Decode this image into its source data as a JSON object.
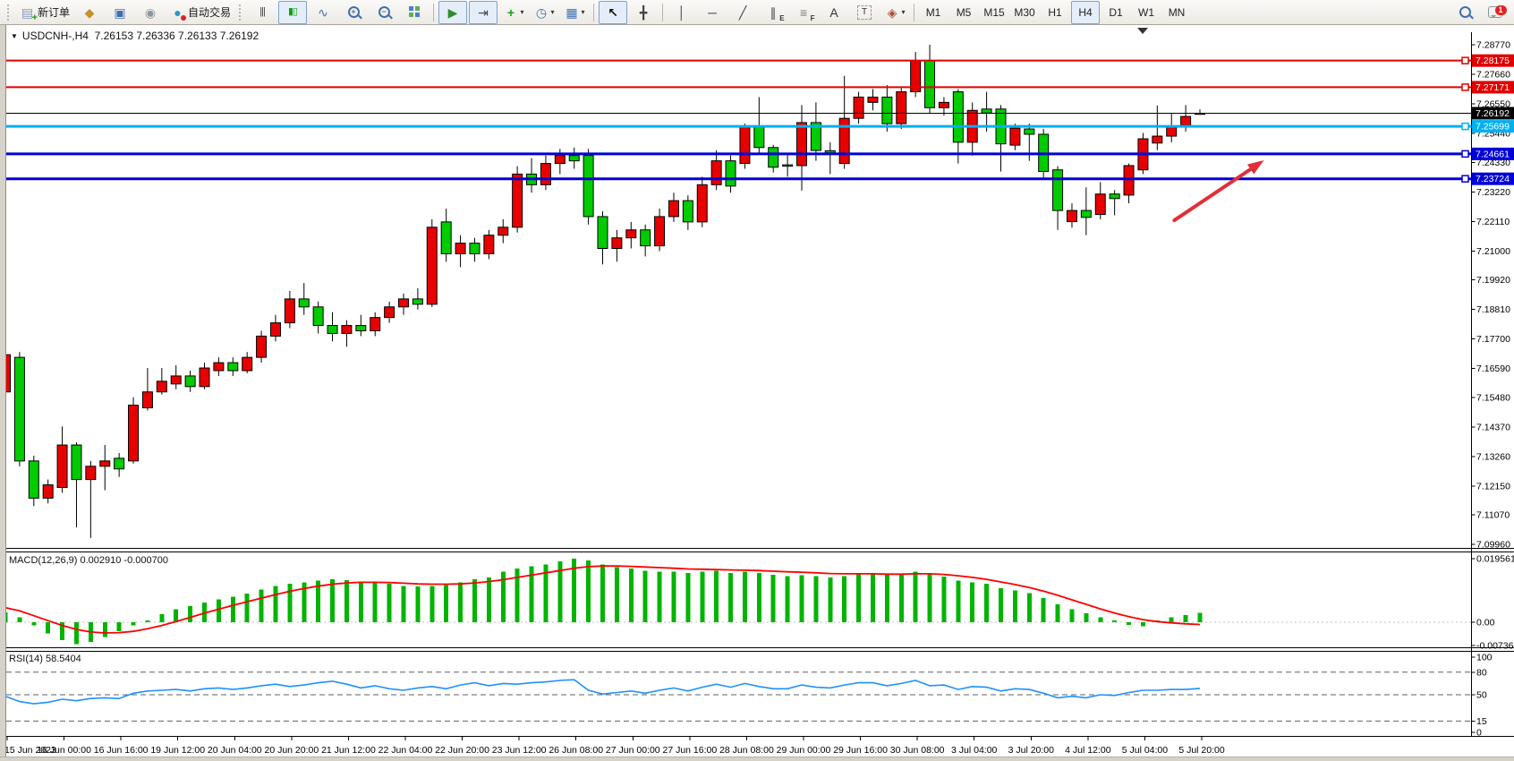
{
  "window": {
    "title_symbol": "USDCNH-,H4",
    "title_ohlc": "7.26153 7.26336 7.26133 7.26192",
    "dropdown_marker": "▼"
  },
  "toolbar": {
    "groups": [
      {
        "gripper": true,
        "items": [
          {
            "name": "new-order-button",
            "icon": "new-order-icon",
            "label": "新订单"
          },
          {
            "name": "history-center-button",
            "icon": "history-icon"
          },
          {
            "name": "terminal-button",
            "icon": "terminal-icon"
          },
          {
            "name": "signals-button",
            "icon": "signals-icon"
          },
          {
            "name": "auto-trading-button",
            "icon": "auto-trading-icon",
            "label": "自动交易"
          }
        ]
      },
      {
        "gripper": true,
        "items": [
          {
            "name": "bar-chart-button",
            "icon": "bar-chart-icon"
          },
          {
            "name": "candlestick-button",
            "icon": "candlestick-icon",
            "active": true
          },
          {
            "name": "line-chart-button",
            "icon": "line-chart-icon"
          },
          {
            "name": "zoom-in-button",
            "icon": "zoom-in-icon"
          },
          {
            "name": "zoom-out-button",
            "icon": "zoom-out-icon"
          },
          {
            "name": "tile-windows-button",
            "icon": "tile-windows-icon"
          }
        ]
      },
      {
        "sep": true,
        "items": [
          {
            "name": "auto-scroll-button",
            "icon": "auto-scroll-icon",
            "active": true
          },
          {
            "name": "chart-shift-button",
            "icon": "chart-shift-icon",
            "active": true
          },
          {
            "name": "indicators-button",
            "icon": "indicators-icon",
            "caret": true
          },
          {
            "name": "periods-button",
            "icon": "clock-icon",
            "caret": true
          },
          {
            "name": "templates-button",
            "icon": "template-icon",
            "caret": true
          }
        ]
      },
      {
        "sep": true,
        "items": [
          {
            "name": "cursor-button",
            "icon": "cursor-icon",
            "active": true
          },
          {
            "name": "crosshair-button",
            "icon": "crosshair-icon"
          }
        ]
      },
      {
        "sep": true,
        "items": [
          {
            "name": "vertical-line-button",
            "icon": "vertical-line-icon"
          },
          {
            "name": "horizontal-line-button",
            "icon": "horizontal-line-icon"
          },
          {
            "name": "trendline-button",
            "icon": "trendline-icon"
          },
          {
            "name": "equidistant-channel-button",
            "icon": "channel-icon"
          },
          {
            "name": "fibonacci-button",
            "icon": "fibonacci-icon"
          },
          {
            "name": "text-button",
            "icon": "text-icon"
          },
          {
            "name": "text-label-button",
            "icon": "text-label-icon"
          },
          {
            "name": "arrows-button",
            "icon": "arrows-icon",
            "caret": true
          }
        ]
      },
      {
        "sep": true,
        "items": [
          {
            "name": "timeframe-m1",
            "label": "M1"
          },
          {
            "name": "timeframe-m5",
            "label": "M5"
          },
          {
            "name": "timeframe-m15",
            "label": "M15"
          },
          {
            "name": "timeframe-m30",
            "label": "M30"
          },
          {
            "name": "timeframe-h1",
            "label": "H1"
          },
          {
            "name": "timeframe-h4",
            "label": "H4",
            "active": true
          },
          {
            "name": "timeframe-d1",
            "label": "D1"
          },
          {
            "name": "timeframe-w1",
            "label": "W1"
          },
          {
            "name": "timeframe-mn",
            "label": "MN"
          }
        ]
      },
      {
        "spacer": true
      },
      {
        "items": [
          {
            "name": "search-button",
            "icon": "search-icon"
          },
          {
            "name": "chat-button",
            "icon": "chat-icon",
            "badge": "1"
          }
        ]
      }
    ]
  },
  "chart_data": [
    {
      "type": "candlestick",
      "title": "USDCNH-,H4",
      "timeframe": "H4",
      "ohlc_display": {
        "open": "7.26153",
        "high": "7.26336",
        "low": "7.26133",
        "close": "7.26192"
      },
      "ylim": [
        7.0975,
        7.292
      ],
      "up_color": "#e80000",
      "down_color": "#00cc00",
      "outline_color": "#000000",
      "y_ticks": [
        "7.28770",
        "7.27660",
        "7.26550",
        "7.25440",
        "7.24330",
        "7.23220",
        "7.22110",
        "7.21000",
        "7.19920",
        "7.18810",
        "7.17700",
        "7.16590",
        "7.15480",
        "7.14370",
        "7.13260",
        "7.12150",
        "7.11070",
        "7.09960"
      ],
      "candles": [
        [
          7.157,
          7.174,
          7.155,
          7.171
        ],
        [
          7.17,
          7.172,
          7.129,
          7.131
        ],
        [
          7.131,
          7.133,
          7.114,
          7.117
        ],
        [
          7.117,
          7.124,
          7.115,
          7.122
        ],
        [
          7.121,
          7.144,
          7.119,
          7.137
        ],
        [
          7.137,
          7.138,
          7.106,
          7.124
        ],
        [
          7.124,
          7.131,
          7.102,
          7.129
        ],
        [
          7.129,
          7.137,
          7.12,
          7.131
        ],
        [
          7.132,
          7.134,
          7.125,
          7.128
        ],
        [
          7.131,
          7.155,
          7.13,
          7.152
        ],
        [
          7.151,
          7.166,
          7.15,
          7.157
        ],
        [
          7.157,
          7.166,
          7.156,
          7.161
        ],
        [
          7.16,
          7.167,
          7.158,
          7.163
        ],
        [
          7.163,
          7.165,
          7.157,
          7.159
        ],
        [
          7.159,
          7.168,
          7.158,
          7.166
        ],
        [
          7.165,
          7.17,
          7.163,
          7.168
        ],
        [
          7.168,
          7.17,
          7.163,
          7.165
        ],
        [
          7.165,
          7.172,
          7.164,
          7.17
        ],
        [
          7.17,
          7.18,
          7.168,
          7.178
        ],
        [
          7.178,
          7.186,
          7.176,
          7.183
        ],
        [
          7.183,
          7.195,
          7.181,
          7.192
        ],
        [
          7.192,
          7.198,
          7.186,
          7.189
        ],
        [
          7.189,
          7.191,
          7.179,
          7.182
        ],
        [
          7.182,
          7.187,
          7.176,
          7.179
        ],
        [
          7.179,
          7.184,
          7.174,
          7.182
        ],
        [
          7.182,
          7.186,
          7.178,
          7.18
        ],
        [
          7.18,
          7.187,
          7.178,
          7.185
        ],
        [
          7.185,
          7.191,
          7.183,
          7.189
        ],
        [
          7.189,
          7.194,
          7.186,
          7.192
        ],
        [
          7.192,
          7.196,
          7.188,
          7.19
        ],
        [
          7.19,
          7.222,
          7.189,
          7.219
        ],
        [
          7.221,
          7.226,
          7.206,
          7.209
        ],
        [
          7.209,
          7.216,
          7.204,
          7.213
        ],
        [
          7.213,
          7.215,
          7.206,
          7.209
        ],
        [
          7.209,
          7.218,
          7.207,
          7.216
        ],
        [
          7.216,
          7.222,
          7.213,
          7.219
        ],
        [
          7.219,
          7.242,
          7.217,
          7.239
        ],
        [
          7.239,
          7.245,
          7.232,
          7.235
        ],
        [
          7.235,
          7.246,
          7.233,
          7.243
        ],
        [
          7.243,
          7.2485,
          7.239,
          7.246
        ],
        [
          7.246,
          7.249,
          7.241,
          7.244
        ],
        [
          7.246,
          7.2485,
          7.22,
          7.223
        ],
        [
          7.223,
          7.225,
          7.205,
          7.211
        ],
        [
          7.211,
          7.218,
          7.206,
          7.215
        ],
        [
          7.215,
          7.221,
          7.211,
          7.218
        ],
        [
          7.218,
          7.22,
          7.208,
          7.212
        ],
        [
          7.212,
          7.226,
          7.21,
          7.223
        ],
        [
          7.223,
          7.232,
          7.221,
          7.229
        ],
        [
          7.229,
          7.231,
          7.218,
          7.221
        ],
        [
          7.221,
          7.238,
          7.219,
          7.235
        ],
        [
          7.235,
          7.248,
          7.233,
          7.244
        ],
        [
          7.244,
          7.246,
          7.232,
          7.2345
        ],
        [
          7.243,
          7.258,
          7.241,
          7.2567
        ],
        [
          7.2567,
          7.268,
          7.247,
          7.249
        ],
        [
          7.249,
          7.25,
          7.2396,
          7.2416
        ],
        [
          7.2425,
          7.247,
          7.238,
          7.242
        ],
        [
          7.2422,
          7.265,
          7.2328,
          7.2584
        ],
        [
          7.2584,
          7.266,
          7.244,
          7.2479
        ],
        [
          7.2478,
          7.251,
          7.239,
          7.247
        ],
        [
          7.243,
          7.276,
          7.241,
          7.26
        ],
        [
          7.26,
          7.27,
          7.258,
          7.268
        ],
        [
          7.266,
          7.271,
          7.263,
          7.268
        ],
        [
          7.268,
          7.2725,
          7.255,
          7.258
        ],
        [
          7.258,
          7.272,
          7.256,
          7.27
        ],
        [
          7.27,
          7.285,
          7.268,
          7.2817
        ],
        [
          7.2817,
          7.2877,
          7.262,
          7.264
        ],
        [
          7.264,
          7.268,
          7.261,
          7.266
        ],
        [
          7.27,
          7.271,
          7.243,
          7.251
        ],
        [
          7.251,
          7.266,
          7.246,
          7.263
        ],
        [
          7.2635,
          7.27,
          7.255,
          7.262
        ],
        [
          7.2635,
          7.265,
          7.24,
          7.2504
        ],
        [
          7.2499,
          7.258,
          7.248,
          7.2563
        ],
        [
          7.256,
          7.258,
          7.244,
          7.254
        ],
        [
          7.254,
          7.256,
          7.237,
          7.24
        ],
        [
          7.2406,
          7.242,
          7.218,
          7.2253
        ],
        [
          7.2211,
          7.228,
          7.2188,
          7.2253
        ],
        [
          7.2253,
          7.234,
          7.216,
          7.2227
        ],
        [
          7.2238,
          7.236,
          7.222,
          7.2315
        ],
        [
          7.2315,
          7.233,
          7.2235,
          7.2298
        ],
        [
          7.2311,
          7.243,
          7.228,
          7.2422
        ],
        [
          7.2406,
          7.2545,
          7.239,
          7.2523
        ],
        [
          7.2507,
          7.2648,
          7.248,
          7.2533
        ],
        [
          7.2533,
          7.262,
          7.251,
          7.2567
        ],
        [
          7.2574,
          7.265,
          7.255,
          7.2607
        ],
        [
          7.26153,
          7.26336,
          7.26133,
          7.26192
        ]
      ],
      "hlines": [
        {
          "price": 7.28175,
          "color": "#e00000",
          "width": 2,
          "label": "7.28175"
        },
        {
          "price": 7.27171,
          "color": "#e00000",
          "width": 2,
          "label": "7.27171"
        },
        {
          "price": 7.25699,
          "color": "#00b0f0",
          "width": 3,
          "label": "7.25699"
        },
        {
          "price": 7.24661,
          "color": "#0000d8",
          "width": 3,
          "label": "7.24661"
        },
        {
          "price": 7.23724,
          "color": "#0000d8",
          "width": 3,
          "label": "7.23724"
        }
      ],
      "current_price": {
        "price": 7.26192,
        "label": "7.26192",
        "line_color": "#000000",
        "badge_bg": "#000000"
      },
      "badges": [
        {
          "text": "7.28175",
          "price": 7.28175,
          "bg": "#e00000"
        },
        {
          "text": "7.27171",
          "price": 7.27171,
          "bg": "#e00000"
        },
        {
          "text": "7.26192",
          "price": 7.26192,
          "bg": "#000000"
        },
        {
          "text": "7.25699",
          "price": 7.25699,
          "bg": "#00b0f0"
        },
        {
          "text": "7.24661",
          "price": 7.24661,
          "bg": "#0000d8"
        },
        {
          "text": "7.23724",
          "price": 7.23724,
          "bg": "#0000d8"
        }
      ],
      "arrow": {
        "from": {
          "bar": 82.2,
          "price": 7.2216
        },
        "to": {
          "bar": 88.5,
          "price": 7.2442
        },
        "color": "#e22e38"
      }
    },
    {
      "type": "bar",
      "name": "MACD",
      "label": "MACD(12,26,9) 0.002910 -0.000700",
      "bar_color": "#00b400",
      "signal_color": "#ff0000",
      "ticks": [
        {
          "label": "0.019561",
          "v": 0.019561
        },
        {
          "label": "0.00",
          "v": 0
        },
        {
          "label": "-0.007367",
          "v": -0.007367
        }
      ],
      "values": [
        0.003,
        0.0015,
        -0.001,
        -0.0035,
        -0.0055,
        -0.0068,
        -0.006,
        -0.0045,
        -0.0028,
        -0.001,
        0.0005,
        0.0025,
        0.004,
        0.005,
        0.006,
        0.007,
        0.0078,
        0.0088,
        0.01,
        0.0112,
        0.0118,
        0.0123,
        0.0128,
        0.0132,
        0.013,
        0.0125,
        0.0122,
        0.0118,
        0.0112,
        0.011,
        0.0112,
        0.0115,
        0.0122,
        0.0132,
        0.0138,
        0.0155,
        0.0165,
        0.0172,
        0.0178,
        0.0188,
        0.0196,
        0.019,
        0.0178,
        0.017,
        0.0165,
        0.0158,
        0.0155,
        0.0156,
        0.0152,
        0.0155,
        0.0158,
        0.0152,
        0.0156,
        0.0152,
        0.0146,
        0.0142,
        0.0145,
        0.0142,
        0.0138,
        0.0142,
        0.0148,
        0.015,
        0.0146,
        0.0148,
        0.0156,
        0.015,
        0.014,
        0.0128,
        0.0122,
        0.0118,
        0.0105,
        0.0098,
        0.009,
        0.0075,
        0.0055,
        0.004,
        0.0028,
        0.0015,
        0.0005,
        -0.0008,
        -0.0012,
        0.0005,
        0.0015,
        0.0022,
        0.00291
      ],
      "signal": [
        0.0045,
        0.0035,
        0.002,
        0.0005,
        -0.001,
        -0.0022,
        -0.003,
        -0.0033,
        -0.0032,
        -0.0028,
        -0.002,
        -0.001,
        0.0002,
        0.0015,
        0.0028,
        0.004,
        0.0052,
        0.0063,
        0.0074,
        0.0085,
        0.0095,
        0.0104,
        0.0111,
        0.0117,
        0.0121,
        0.0123,
        0.0123,
        0.0122,
        0.012,
        0.0118,
        0.0117,
        0.0117,
        0.0118,
        0.0121,
        0.0125,
        0.0131,
        0.0138,
        0.0145,
        0.0152,
        0.0159,
        0.0166,
        0.0171,
        0.0173,
        0.0173,
        0.0172,
        0.017,
        0.0168,
        0.0166,
        0.0164,
        0.0163,
        0.0162,
        0.0161,
        0.016,
        0.0159,
        0.0157,
        0.0155,
        0.0154,
        0.0152,
        0.015,
        0.0149,
        0.0149,
        0.0149,
        0.0148,
        0.0148,
        0.0149,
        0.0149,
        0.0147,
        0.0143,
        0.0138,
        0.0132,
        0.0124,
        0.0116,
        0.0107,
        0.0096,
        0.0083,
        0.0069,
        0.0055,
        0.0041,
        0.0028,
        0.0017,
        0.0008,
        0.0002,
        -0.0002,
        -0.0005,
        -0.0007
      ]
    },
    {
      "type": "line",
      "name": "RSI",
      "label": "RSI(14) 58.5404",
      "color": "#1e90ff",
      "ticks": [
        100,
        80,
        50,
        15,
        0
      ],
      "dashed_levels": [
        80,
        50,
        15
      ],
      "values": [
        48,
        41,
        38,
        40,
        44,
        42,
        45,
        46,
        45,
        52,
        55,
        56,
        57,
        55,
        58,
        59,
        57,
        59,
        62,
        64,
        61,
        63,
        66,
        68,
        64,
        59,
        62,
        58,
        56,
        59,
        61,
        58,
        63,
        66,
        62,
        65,
        64,
        66,
        67,
        69,
        70,
        56,
        51,
        53,
        55,
        52,
        56,
        59,
        55,
        60,
        64,
        60,
        65,
        61,
        58,
        58,
        63,
        60,
        59,
        63,
        66,
        66,
        62,
        65,
        69,
        62,
        63,
        57,
        61,
        60,
        55,
        58,
        57,
        52,
        46,
        48,
        46,
        50,
        49,
        53,
        56,
        56,
        57,
        57,
        58.5
      ]
    }
  ],
  "x_axis": {
    "labels": [
      "15 Jun 2023",
      "16 Jun 00:00",
      "16 Jun 16:00",
      "19 Jun 12:00",
      "20 Jun 04:00",
      "20 Jun 20:00",
      "21 Jun 12:00",
      "22 Jun 04:00",
      "22 Jun 20:00",
      "23 Jun 12:00",
      "26 Jun 08:00",
      "27 Jun 00:00",
      "27 Jun 16:00",
      "28 Jun 08:00",
      "29 Jun 00:00",
      "29 Jun 16:00",
      "30 Jun 08:00",
      "3 Jul 04:00",
      "3 Jul 20:00",
      "4 Jul 12:00",
      "5 Jul 04:00",
      "5 Jul 20:00"
    ],
    "bars_per_label": 4
  }
}
